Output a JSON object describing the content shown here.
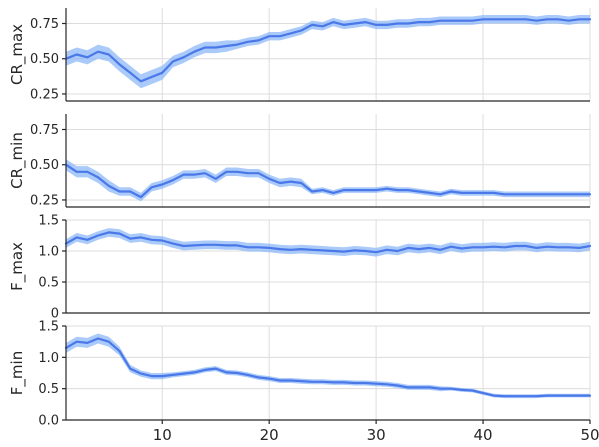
{
  "chart_data": {
    "type": "line",
    "x": [
      1,
      2,
      3,
      4,
      5,
      6,
      7,
      8,
      9,
      10,
      11,
      12,
      13,
      14,
      15,
      16,
      17,
      18,
      19,
      20,
      21,
      22,
      23,
      24,
      25,
      26,
      27,
      28,
      29,
      30,
      31,
      32,
      33,
      34,
      35,
      36,
      37,
      38,
      39,
      40,
      41,
      42,
      43,
      44,
      45,
      46,
      47,
      48,
      49,
      50
    ],
    "xlim": [
      1,
      50
    ],
    "xticks": [
      10,
      20,
      30,
      40,
      50
    ],
    "xtick_labels": [
      "10",
      "20",
      "30",
      "40",
      "50"
    ],
    "grid": true,
    "colors": {
      "line": "#4a78e8",
      "band": "#86b4f8"
    },
    "panels": [
      {
        "ylabel": "CR_max",
        "ylim": [
          0.2,
          0.86
        ],
        "yticks": [
          0.25,
          0.5,
          0.75
        ],
        "ytick_labels": [
          "0.25",
          "0.50",
          "0.75"
        ],
        "mean": [
          0.5,
          0.53,
          0.51,
          0.55,
          0.53,
          0.46,
          0.4,
          0.34,
          0.37,
          0.4,
          0.48,
          0.51,
          0.55,
          0.58,
          0.58,
          0.59,
          0.6,
          0.62,
          0.63,
          0.66,
          0.66,
          0.68,
          0.7,
          0.74,
          0.73,
          0.76,
          0.74,
          0.75,
          0.76,
          0.74,
          0.74,
          0.75,
          0.75,
          0.76,
          0.76,
          0.77,
          0.77,
          0.77,
          0.77,
          0.78,
          0.78,
          0.78,
          0.78,
          0.78,
          0.77,
          0.78,
          0.78,
          0.77,
          0.78,
          0.78
        ],
        "band_halfwidth": [
          0.05,
          0.05,
          0.05,
          0.05,
          0.05,
          0.05,
          0.05,
          0.05,
          0.05,
          0.05,
          0.04,
          0.04,
          0.04,
          0.04,
          0.04,
          0.04,
          0.03,
          0.03,
          0.03,
          0.03,
          0.03,
          0.03,
          0.03,
          0.03,
          0.03,
          0.03,
          0.03,
          0.03,
          0.03,
          0.03,
          0.03,
          0.03,
          0.03,
          0.03,
          0.03,
          0.03,
          0.03,
          0.03,
          0.03,
          0.03,
          0.03,
          0.03,
          0.03,
          0.03,
          0.03,
          0.03,
          0.03,
          0.03,
          0.03,
          0.03
        ]
      },
      {
        "ylabel": "CR_min",
        "ylim": [
          0.2,
          0.86
        ],
        "yticks": [
          0.25,
          0.5,
          0.75
        ],
        "ytick_labels": [
          "0.25",
          "0.50",
          "0.75"
        ],
        "mean": [
          0.5,
          0.45,
          0.45,
          0.41,
          0.35,
          0.31,
          0.31,
          0.27,
          0.34,
          0.36,
          0.39,
          0.43,
          0.43,
          0.44,
          0.4,
          0.45,
          0.45,
          0.44,
          0.44,
          0.4,
          0.37,
          0.38,
          0.37,
          0.31,
          0.32,
          0.3,
          0.32,
          0.32,
          0.32,
          0.32,
          0.33,
          0.32,
          0.32,
          0.31,
          0.3,
          0.29,
          0.31,
          0.3,
          0.3,
          0.3,
          0.3,
          0.29,
          0.29,
          0.29,
          0.29,
          0.29,
          0.29,
          0.29,
          0.29,
          0.29
        ],
        "band_halfwidth": [
          0.04,
          0.04,
          0.04,
          0.04,
          0.04,
          0.03,
          0.03,
          0.03,
          0.03,
          0.03,
          0.03,
          0.03,
          0.03,
          0.03,
          0.03,
          0.03,
          0.03,
          0.03,
          0.03,
          0.03,
          0.03,
          0.03,
          0.03,
          0.02,
          0.02,
          0.02,
          0.02,
          0.02,
          0.02,
          0.02,
          0.02,
          0.02,
          0.02,
          0.02,
          0.02,
          0.02,
          0.02,
          0.02,
          0.02,
          0.02,
          0.02,
          0.02,
          0.02,
          0.02,
          0.02,
          0.02,
          0.02,
          0.02,
          0.02,
          0.02
        ]
      },
      {
        "ylabel": "F_max",
        "ylim": [
          0,
          1.5
        ],
        "yticks": [
          0,
          0.5,
          1.0,
          1.5
        ],
        "ytick_labels": [
          "0",
          "0.5",
          "1.0",
          "1.5"
        ],
        "mean": [
          1.12,
          1.22,
          1.18,
          1.25,
          1.3,
          1.28,
          1.2,
          1.22,
          1.18,
          1.17,
          1.12,
          1.08,
          1.09,
          1.1,
          1.1,
          1.09,
          1.09,
          1.06,
          1.06,
          1.05,
          1.03,
          1.02,
          1.03,
          1.02,
          1.01,
          1.0,
          0.99,
          1.01,
          1.0,
          0.98,
          1.02,
          1.0,
          1.05,
          1.03,
          1.05,
          1.02,
          1.07,
          1.04,
          1.06,
          1.06,
          1.07,
          1.06,
          1.08,
          1.08,
          1.05,
          1.07,
          1.06,
          1.06,
          1.05,
          1.08
        ],
        "band_halfwidth": [
          0.07,
          0.07,
          0.07,
          0.07,
          0.07,
          0.07,
          0.07,
          0.07,
          0.07,
          0.07,
          0.07,
          0.07,
          0.07,
          0.07,
          0.07,
          0.07,
          0.07,
          0.07,
          0.07,
          0.07,
          0.07,
          0.07,
          0.07,
          0.07,
          0.07,
          0.07,
          0.07,
          0.07,
          0.07,
          0.07,
          0.07,
          0.07,
          0.07,
          0.07,
          0.07,
          0.07,
          0.07,
          0.07,
          0.07,
          0.07,
          0.07,
          0.07,
          0.07,
          0.07,
          0.07,
          0.07,
          0.07,
          0.07,
          0.07,
          0.07
        ]
      },
      {
        "ylabel": "F_min",
        "ylim": [
          0,
          1.5
        ],
        "yticks": [
          0,
          0.5,
          1.0,
          1.5
        ],
        "ytick_labels": [
          "0.0",
          "0.5",
          "1.0",
          "1.5"
        ],
        "mean": [
          1.15,
          1.25,
          1.23,
          1.3,
          1.25,
          1.1,
          0.82,
          0.74,
          0.7,
          0.7,
          0.72,
          0.74,
          0.76,
          0.8,
          0.82,
          0.76,
          0.75,
          0.72,
          0.68,
          0.66,
          0.63,
          0.63,
          0.62,
          0.61,
          0.61,
          0.6,
          0.6,
          0.59,
          0.59,
          0.58,
          0.57,
          0.55,
          0.52,
          0.52,
          0.52,
          0.5,
          0.5,
          0.48,
          0.47,
          0.43,
          0.39,
          0.38,
          0.38,
          0.38,
          0.38,
          0.39,
          0.39,
          0.39,
          0.39,
          0.39
        ],
        "band_halfwidth": [
          0.08,
          0.08,
          0.08,
          0.08,
          0.08,
          0.07,
          0.06,
          0.05,
          0.05,
          0.05,
          0.04,
          0.04,
          0.04,
          0.04,
          0.04,
          0.04,
          0.04,
          0.04,
          0.04,
          0.04,
          0.04,
          0.04,
          0.04,
          0.04,
          0.04,
          0.04,
          0.04,
          0.04,
          0.04,
          0.04,
          0.04,
          0.04,
          0.04,
          0.04,
          0.04,
          0.04,
          0.03,
          0.03,
          0.03,
          0.03,
          0.03,
          0.03,
          0.03,
          0.03,
          0.03,
          0.03,
          0.03,
          0.03,
          0.03,
          0.03
        ]
      }
    ]
  }
}
